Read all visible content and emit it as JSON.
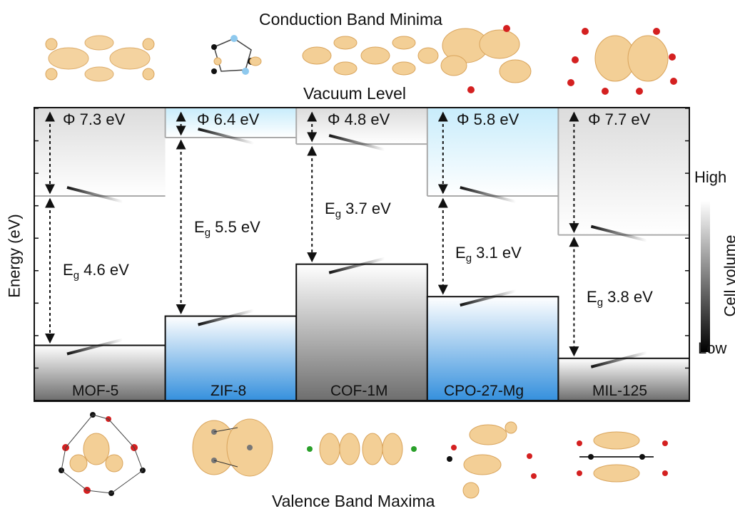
{
  "header": {
    "cbm_title": "Conduction Band Minima",
    "vacuum_level": "Vacuum Level",
    "vbm_title": "Valence Band Maxima"
  },
  "axis": {
    "ylabel": "Energy (eV)",
    "colorbar_title": "Cell volume",
    "colorbar_high": "High",
    "colorbar_low": "Low"
  },
  "materials": [
    {
      "name": "MOF-5",
      "phi": "Φ 7.3 eV",
      "eg_prefix": "E",
      "eg_sub": "g",
      "eg_value": "4.6 eV",
      "phi_ev": 7.3,
      "eg_ev": 4.6,
      "color": "#8a8a8a"
    },
    {
      "name": "ZIF-8",
      "phi": "Φ 6.4 eV",
      "eg_prefix": "E",
      "eg_sub": "g",
      "eg_value": "5.5 eV",
      "phi_ev": 6.4,
      "eg_ev": 5.5,
      "color": "#3f9be0"
    },
    {
      "name": "COF-1M",
      "phi": "Φ 4.8 eV",
      "eg_prefix": "E",
      "eg_sub": "g",
      "eg_value": "3.7 eV",
      "phi_ev": 4.8,
      "eg_ev": 3.7,
      "color": "#7a7a7a"
    },
    {
      "name": "CPO-27-Mg",
      "phi": "Φ 5.8 eV",
      "eg_prefix": "E",
      "eg_sub": "g",
      "eg_value": "3.1 eV",
      "phi_ev": 5.8,
      "eg_ev": 3.1,
      "color": "#3f9be0"
    },
    {
      "name": "MIL-125",
      "phi": "Φ 7.7 eV",
      "eg_prefix": "E",
      "eg_sub": "g",
      "eg_value": "3.8 eV",
      "phi_ev": 7.7,
      "eg_ev": 3.8,
      "color": "#6f6f6f"
    }
  ],
  "colors": {
    "orbital_fill": "#f3cf96",
    "orbital_stroke": "#d9a45c",
    "oxygen_atom": "#d42020",
    "carbon_atom": "#111111",
    "nitrogen_atom": "#8ec9ee",
    "cell_blue": "#3f9be0",
    "cell_grey": "#777777"
  }
}
